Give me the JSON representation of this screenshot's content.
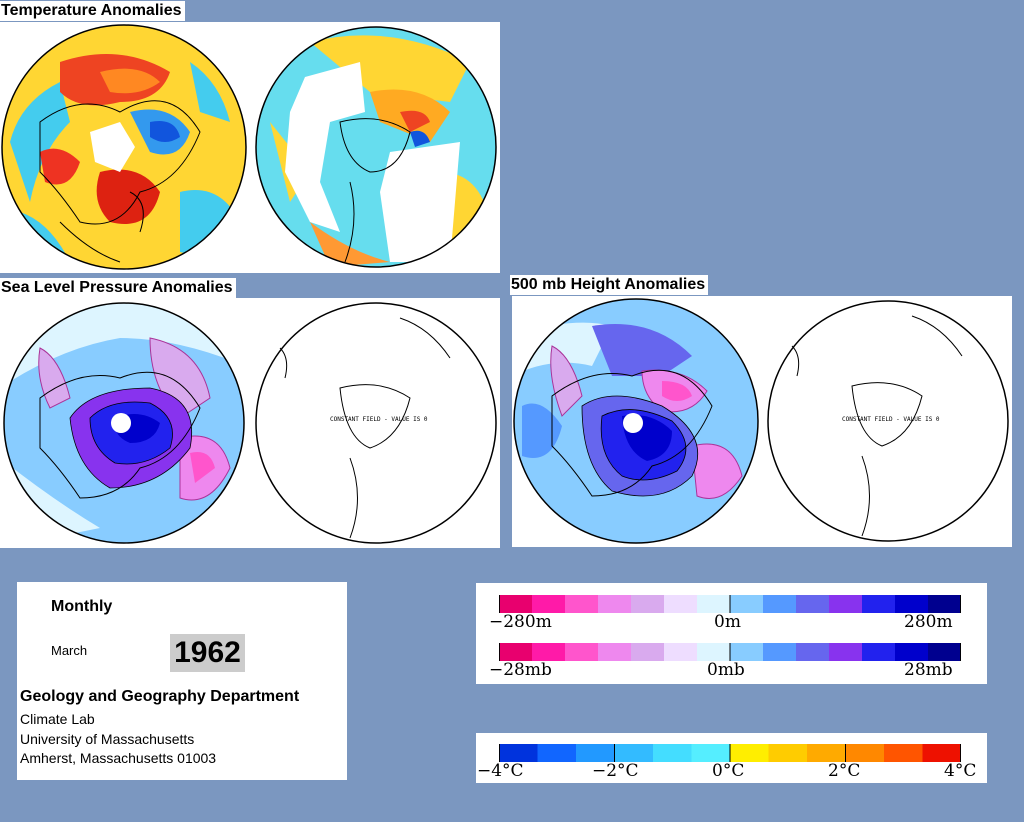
{
  "sections": {
    "temperature_title": "Temperature Anomalies",
    "slp_title": "Sea Level Pressure Anomalies",
    "height_title": "500 mb Height Anomalies"
  },
  "constant_field_note": "CONSTANT FIELD - VALUE IS 0",
  "info": {
    "period": "Monthly",
    "month": "March",
    "year": "1962",
    "department": "Geology and Geography Department",
    "lab": "Climate Lab",
    "university": "University of Massachusetts",
    "address": "Amherst, Massachusetts 01003"
  },
  "height_legend": {
    "labels": [
      "−280m",
      "0m",
      "280m"
    ],
    "colors": [
      "#e8006e",
      "#ff1aa8",
      "#ff55cc",
      "#ee88ee",
      "#d9aaee",
      "#eeddff",
      "#ddf5ff",
      "#88ccff",
      "#5599ff",
      "#6666ee",
      "#8833ee",
      "#2222ee",
      "#0000cc",
      "#00008f"
    ]
  },
  "pressure_legend": {
    "labels": [
      "−28mb",
      "0mb",
      "28mb"
    ],
    "colors": [
      "#e8006e",
      "#ff1aa8",
      "#ff55cc",
      "#ee88ee",
      "#d9aaee",
      "#eeddff",
      "#ddf5ff",
      "#88ccff",
      "#5599ff",
      "#6666ee",
      "#8833ee",
      "#2222ee",
      "#0000cc",
      "#00008f"
    ]
  },
  "temperature_legend": {
    "labels": [
      "−4°C",
      "−2°C",
      "0°C",
      "2°C",
      "4°C"
    ],
    "colors": [
      "#0033dd",
      "#1166ff",
      "#2299ff",
      "#33bbff",
      "#44ddff",
      "#55eeff",
      "#ffee00",
      "#ffcc00",
      "#ffaa00",
      "#ff8800",
      "#ff5500",
      "#ee1100"
    ]
  },
  "map_colors": {
    "temp_warm": "#ffdd33",
    "temp_hot": "#ee3322",
    "temp_cool": "#44ccee",
    "temp_cold": "#1155dd",
    "slp_base": "#66ddee",
    "slp_low": "#2222cc",
    "slp_high": "#ee88dd"
  }
}
